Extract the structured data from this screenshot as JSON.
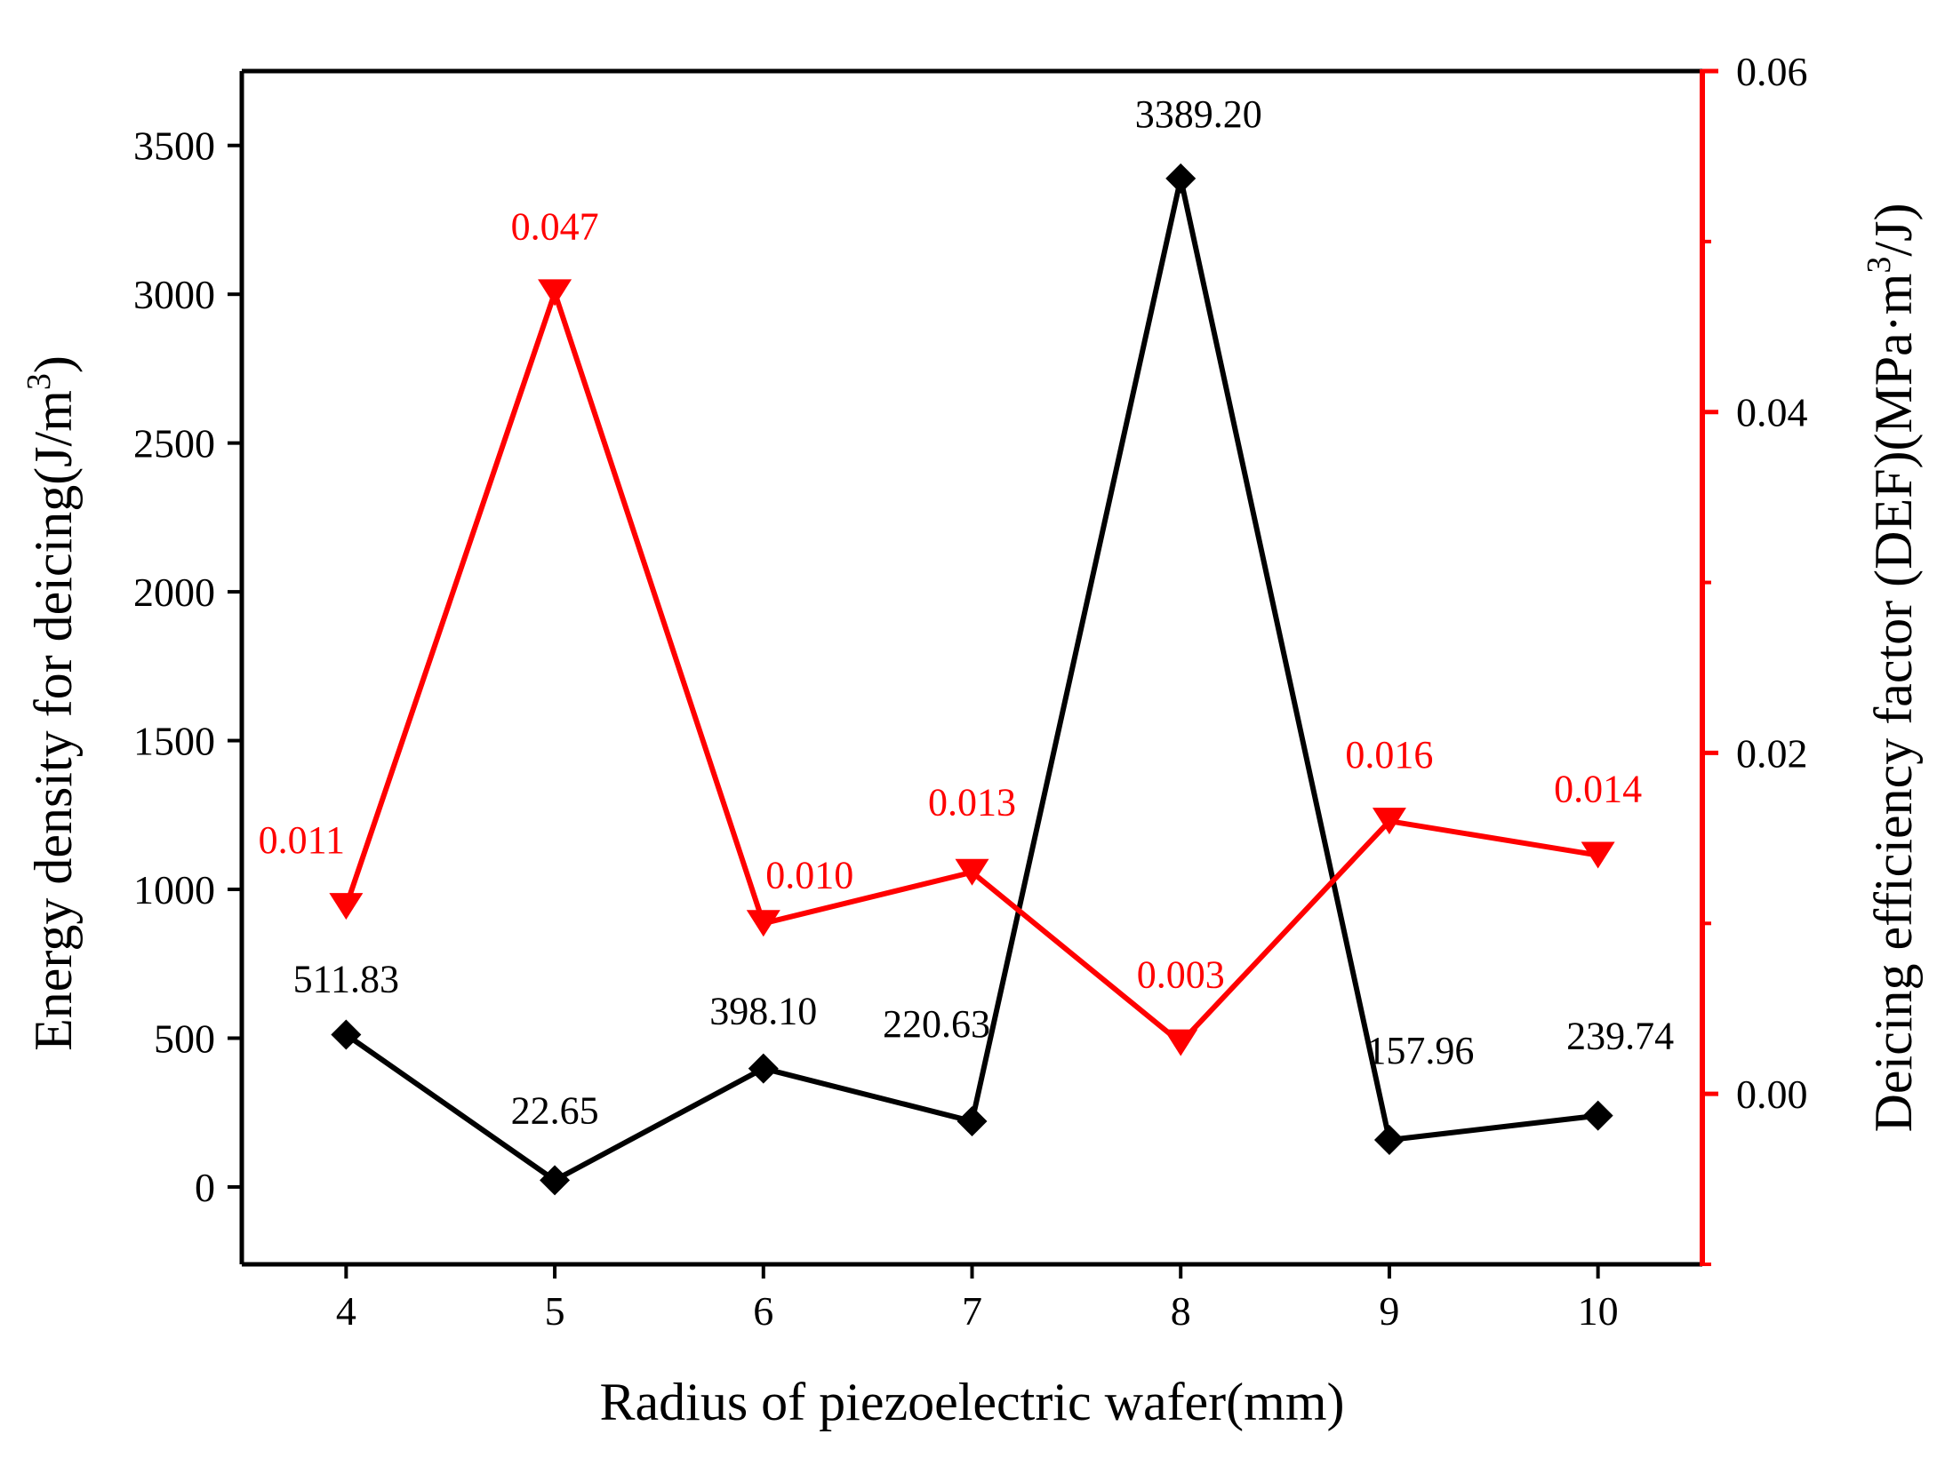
{
  "chart_data": {
    "type": "line",
    "x_axis": {
      "label": "Radius of piezoelectric wafer(mm)",
      "categories": [
        4,
        5,
        6,
        7,
        8,
        9,
        10
      ],
      "range": [
        3.5,
        10.5
      ]
    },
    "y_axis_left": {
      "label_main": "Energy density for deicing(J/m",
      "label_sup": "3",
      "label_end": ")",
      "range": [
        -260,
        3750
      ],
      "ticks": [
        0,
        500,
        1000,
        1500,
        2000,
        2500,
        3000,
        3500
      ],
      "color": "#000000"
    },
    "y_axis_right": {
      "label_main": "Deicing efficiency factor (DEF)(MPa·m",
      "label_sup": "3",
      "label_end": "/J)",
      "range": [
        -0.01,
        0.06
      ],
      "ticks": [
        0.0,
        0.02,
        0.04,
        0.06
      ],
      "tick_labels": [
        "0.00",
        "0.02",
        "0.04",
        "0.06"
      ],
      "minor_ticks": [
        -0.01,
        0.01,
        0.03,
        0.05
      ],
      "color": "#ff0000"
    },
    "series": [
      {
        "name": "Energy density for deicing",
        "axis": "left",
        "color": "#000000",
        "marker": "diamond",
        "values": [
          511.83,
          22.65,
          398.1,
          220.63,
          3389.2,
          157.96,
          239.74
        ],
        "labels": [
          "511.83",
          "22.65",
          "398.10",
          "220.63",
          "3389.20",
          "157.96",
          "239.74"
        ]
      },
      {
        "name": "Deicing efficiency factor (DEF)",
        "axis": "right",
        "color": "#ff0000",
        "marker": "triangle-down",
        "values": [
          0.011,
          0.047,
          0.01,
          0.013,
          0.003,
          0.016,
          0.014
        ],
        "labels": [
          "0.011",
          "0.047",
          "0.010",
          "0.013",
          "0.003",
          "0.016",
          "0.014"
        ]
      }
    ]
  }
}
